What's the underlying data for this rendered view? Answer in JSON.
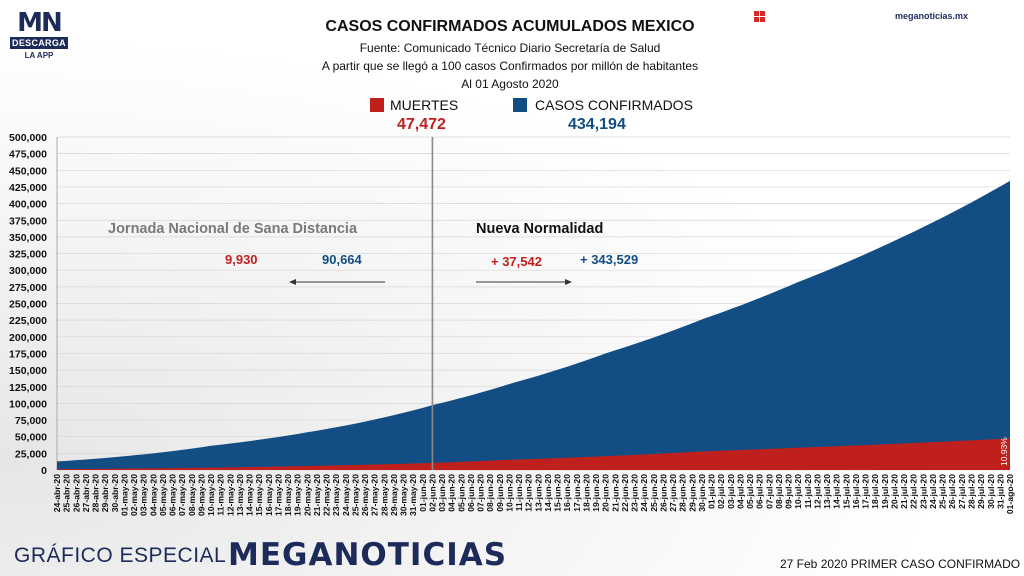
{
  "brand": {
    "logo_letters": "MN",
    "logo_box": "DESCARGA",
    "logo_sub": "LA APP",
    "site": "meganoticias.mx",
    "footer_left": "GRÁFICO ESPECIAL",
    "footer_brand": "MEGANOTICIAS",
    "footer_right": "27 Feb 2020 PRIMER CASO CONFIRMADO"
  },
  "colors": {
    "deaths": "#c0201d",
    "cases": "#124e84",
    "navy": "#1d2b5b",
    "divider": "#8a8a8a"
  },
  "icons": [
    "grid-square-icon"
  ],
  "chart_data": {
    "type": "area",
    "title": "CASOS CONFIRMADOS ACUMULADOS MEXICO",
    "subtitle_lines": [
      "Fuente: Comunicado Técnico Diario Secretaría de Salud",
      "A partir que se llegó a 100 casos Confirmados por millón de habitantes",
      "Al 01 Agosto 2020"
    ],
    "ylim": [
      0,
      500000
    ],
    "y_ticks": [
      "0",
      "25,000",
      "50,000",
      "75,000",
      "100,000",
      "125,000",
      "150,000",
      "175,000",
      "200,000",
      "225,000",
      "250,000",
      "275,000",
      "300,000",
      "325,000",
      "350,000",
      "375,000",
      "400,000",
      "425,000",
      "450,000",
      "475,000",
      "500,000"
    ],
    "x_dates": [
      "24-abr-20",
      "25-abr-20",
      "26-abr-20",
      "27-abr-20",
      "28-abr-20",
      "29-abr-20",
      "30-abr-20",
      "01-may-20",
      "02-may-20",
      "03-may-20",
      "04-may-20",
      "05-may-20",
      "06-may-20",
      "07-may-20",
      "08-may-20",
      "09-may-20",
      "10-may-20",
      "11-may-20",
      "12-may-20",
      "13-may-20",
      "14-may-20",
      "15-may-20",
      "16-may-20",
      "17-may-20",
      "18-may-20",
      "19-may-20",
      "20-may-20",
      "21-may-20",
      "22-may-20",
      "23-may-20",
      "24-may-20",
      "25-may-20",
      "26-may-20",
      "27-may-20",
      "28-may-20",
      "29-may-20",
      "30-may-20",
      "31-may-20",
      "01-jun-20",
      "02-jun-20",
      "03-jun-20",
      "04-jun-20",
      "05-jun-20",
      "06-jun-20",
      "07-jun-20",
      "08-jun-20",
      "09-jun-20",
      "10-jun-20",
      "11-jun-20",
      "12-jun-20",
      "13-jun-20",
      "14-jun-20",
      "15-jun-20",
      "16-jun-20",
      "17-jun-20",
      "18-jun-20",
      "19-jun-20",
      "20-jun-20",
      "21-jun-20",
      "22-jun-20",
      "23-jun-20",
      "24-jun-20",
      "25-jun-20",
      "26-jun-20",
      "27-jun-20",
      "28-jun-20",
      "29-jun-20",
      "30-jun-20",
      "01-jul-20",
      "02-jul-20",
      "03-jul-20",
      "04-jul-20",
      "05-jul-20",
      "06-jul-20",
      "07-jul-20",
      "08-jul-20",
      "09-jul-20",
      "10-jul-20",
      "11-jul-20",
      "12-jul-20",
      "13-jul-20",
      "14-jul-20",
      "15-jul-20",
      "16-jul-20",
      "17-jul-20",
      "18-jul-20",
      "19-jul-20",
      "20-jul-20",
      "21-jul-20",
      "22-jul-20",
      "23-jul-20",
      "24-jul-20",
      "25-jul-20",
      "26-jul-20",
      "27-jul-20",
      "28-jul-20",
      "29-jul-20",
      "30-jul-20",
      "31-jul-20",
      "01-ago-20"
    ],
    "series": [
      {
        "name": "CASOS CONFIRMADOS",
        "total": "434,194",
        "anchors": [
          [
            "24-abr-20",
            12872
          ],
          [
            "01-may-20",
            20739
          ],
          [
            "10-may-20",
            36327
          ],
          [
            "20-may-20",
            56594
          ],
          [
            "02-jun-20",
            97326
          ],
          [
            "10-jun-20",
            129184
          ],
          [
            "20-jun-20",
            175202
          ],
          [
            "30-jun-20",
            226089
          ],
          [
            "10-jul-20",
            282283
          ],
          [
            "20-jul-20",
            344224
          ],
          [
            "01-ago-20",
            434194
          ]
        ]
      },
      {
        "name": "MUERTES",
        "total": "47,472",
        "anchors": [
          [
            "24-abr-20",
            1221
          ],
          [
            "01-may-20",
            2061
          ],
          [
            "10-may-20",
            3573
          ],
          [
            "20-may-20",
            6090
          ],
          [
            "02-jun-20",
            10637
          ],
          [
            "10-jun-20",
            15357
          ],
          [
            "20-jun-20",
            20781
          ],
          [
            "30-jun-20",
            27769
          ],
          [
            "10-jul-20",
            33526
          ],
          [
            "20-jul-20",
            39184
          ],
          [
            "01-ago-20",
            47472
          ]
        ]
      }
    ],
    "split_date": "02-jun-20",
    "phase_left": {
      "label": "Jornada Nacional de Sana Distancia",
      "deaths": "9,930",
      "cases": "90,664"
    },
    "phase_right": {
      "label": "Nueva Normalidad",
      "deaths": "+ 37,542",
      "cases": "+ 343,529"
    },
    "end_annotation": "10.93%",
    "grid": true,
    "legend_position": "top-center"
  }
}
